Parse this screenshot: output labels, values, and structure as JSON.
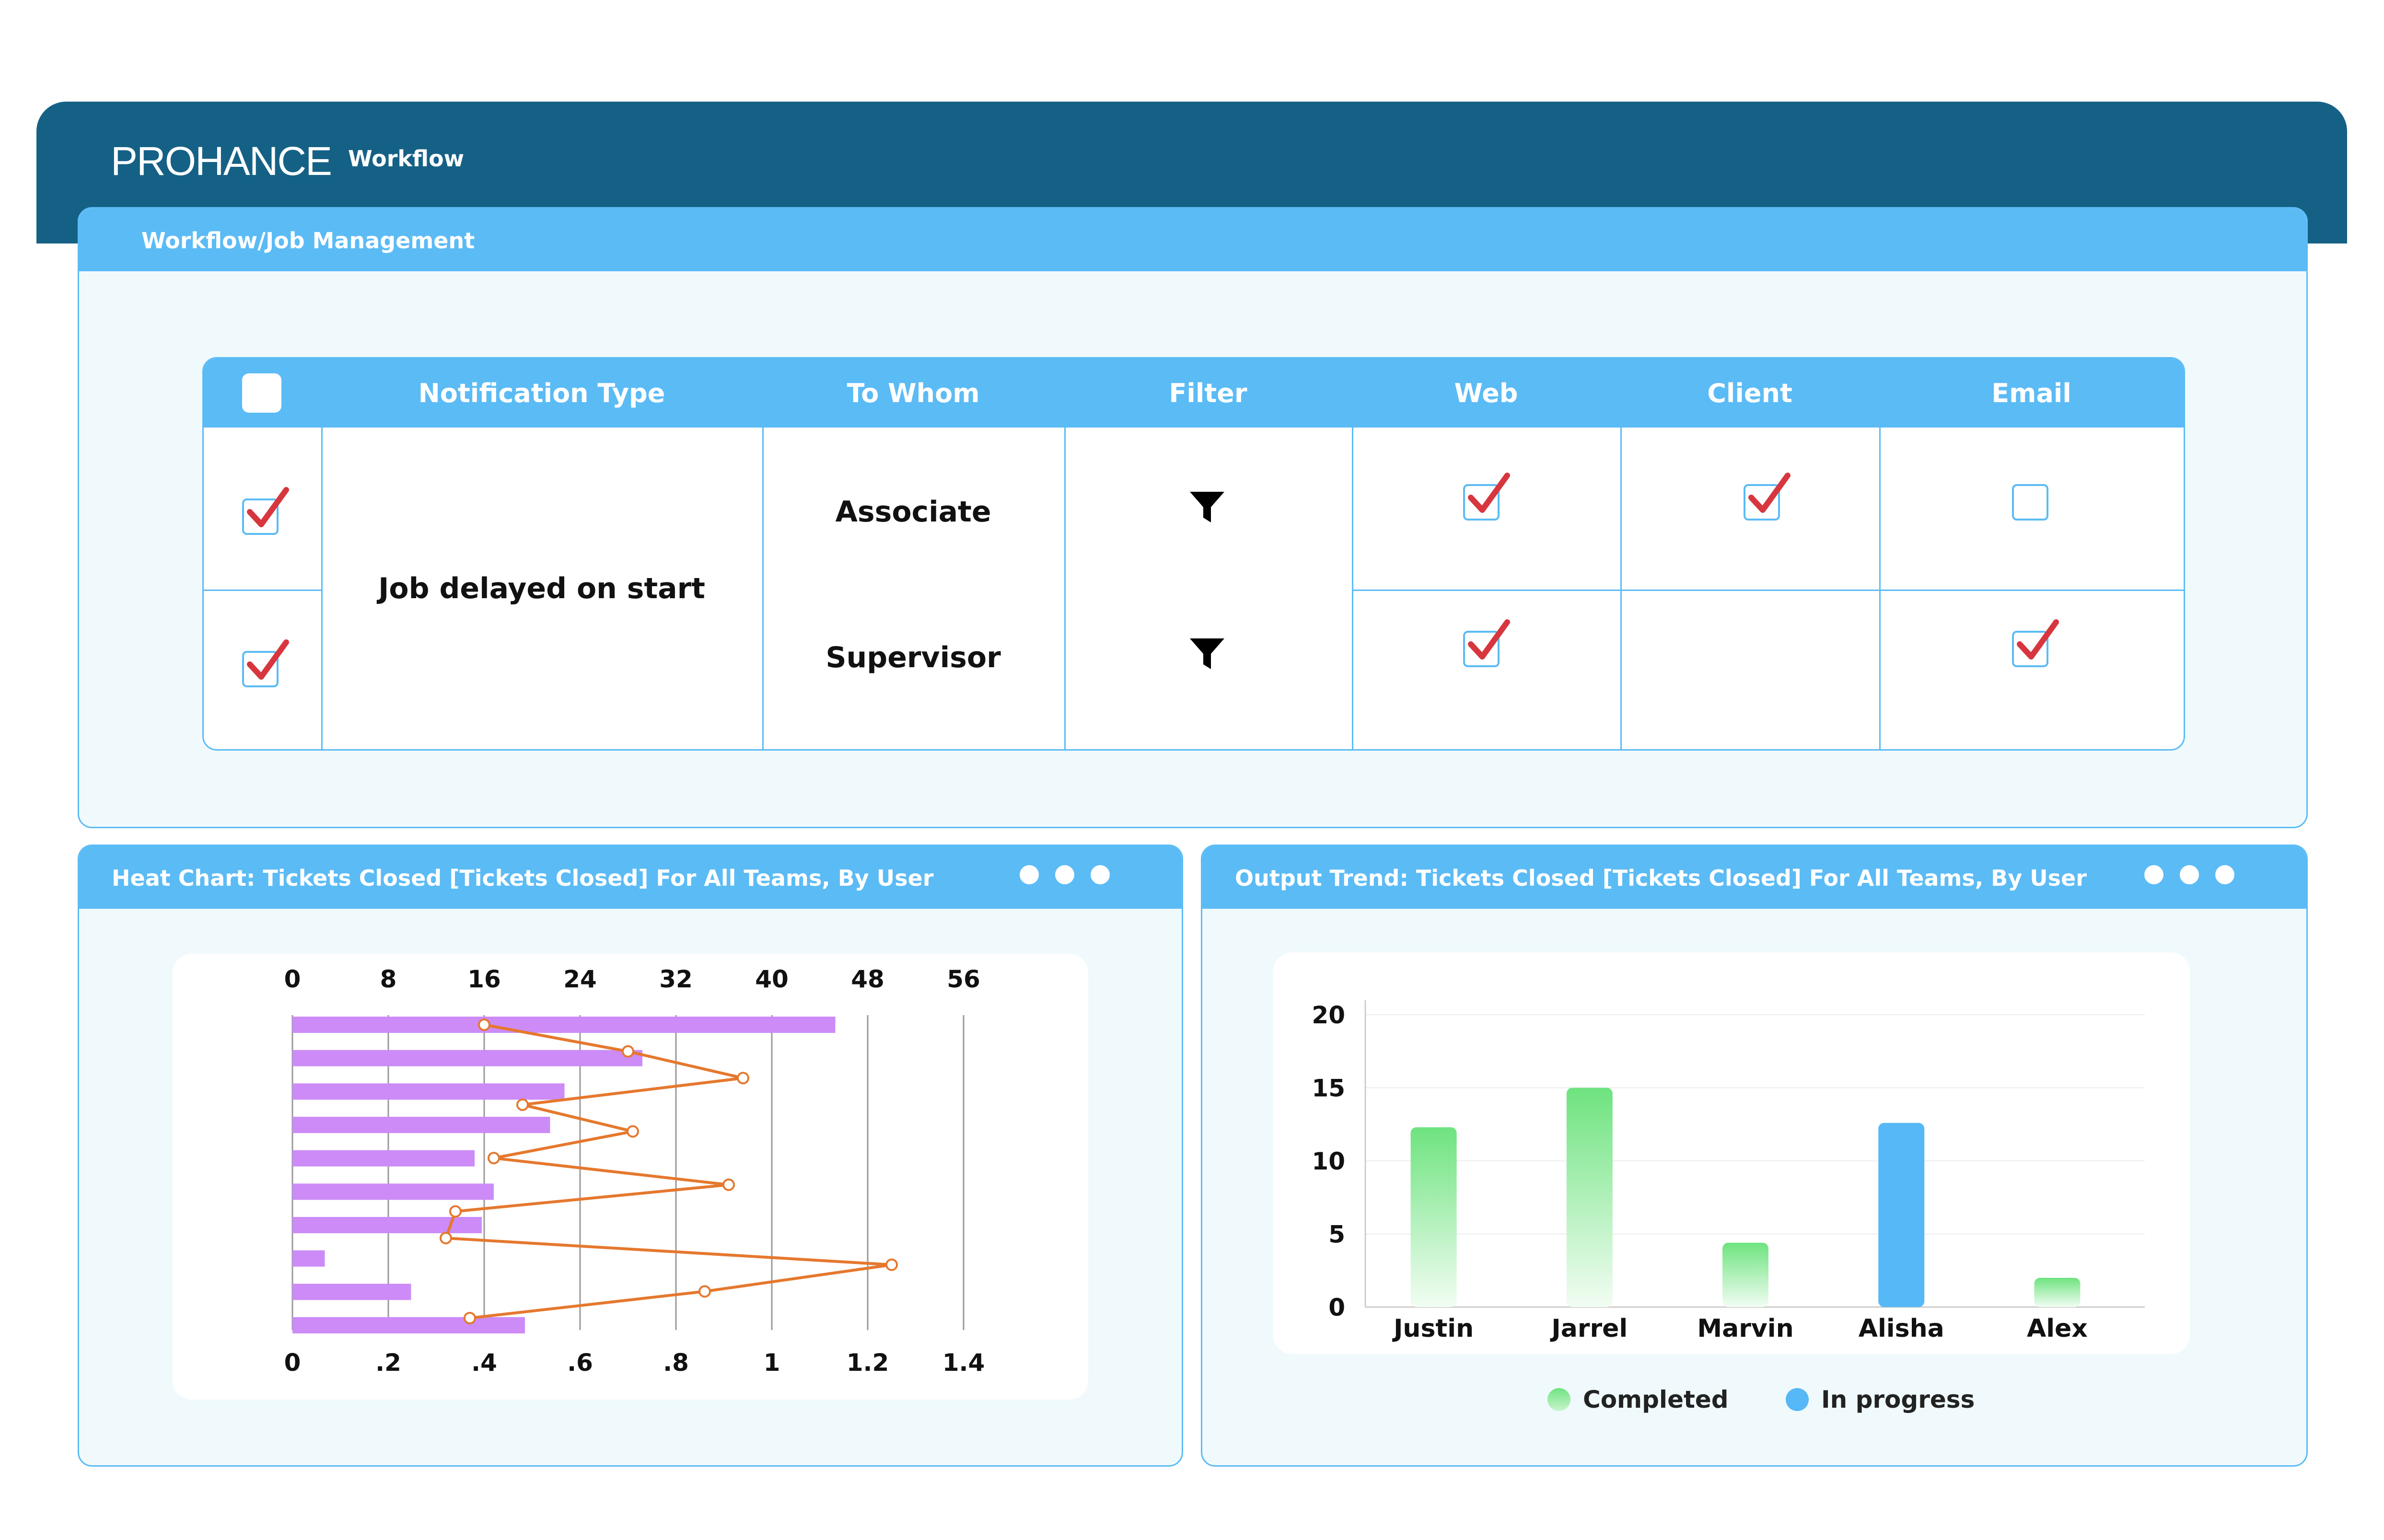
{
  "brand": {
    "logo": "PROHANCE",
    "app": "Workflow"
  },
  "panel": {
    "title": "Workflow/Job Management"
  },
  "table": {
    "headers": [
      "Notification Type",
      "To Whom",
      "Filter",
      "Web",
      "Client",
      "Email"
    ],
    "header_checkbox": false,
    "notification_type": "Job delayed on start",
    "rows": [
      {
        "selected": true,
        "to_whom": "Associate",
        "filter_icon": "funnel-icon",
        "web": true,
        "client": true,
        "email": false
      },
      {
        "selected": true,
        "to_whom": "Supervisor",
        "filter_icon": "funnel-icon",
        "web": true,
        "client": null,
        "email": true
      }
    ]
  },
  "heat_chart": {
    "title": "Heat Chart: Tickets Closed [Tickets Closed] For All Teams, By User",
    "chart_data": {
      "type": "bar",
      "orientation": "horizontal",
      "top_axis_ticks": [
        "0",
        "8",
        "16",
        "24",
        "32",
        "40",
        "48",
        "56"
      ],
      "bottom_axis_ticks": [
        "0",
        ".2",
        ".4",
        ".6",
        ".8",
        "1",
        "1.2",
        "1.4"
      ],
      "bar_values": [
        45.3,
        29.2,
        22.7,
        21.5,
        15.2,
        16.8,
        15.8,
        2.7,
        9.9,
        19.4
      ],
      "line_values": [
        0.4,
        0.7,
        0.94,
        0.48,
        0.71,
        0.42,
        0.91,
        0.34,
        0.32,
        1.25,
        0.86,
        0.37
      ],
      "xlim_top": [
        0,
        56
      ],
      "xlim_bottom": [
        0,
        1.4
      ],
      "grid": true,
      "colors": {
        "bars": "#cc8bf7",
        "line": "#e5782e",
        "marker_fill": "#ffffff"
      }
    }
  },
  "output_trend": {
    "title": "Output Trend: Tickets Closed [Tickets Closed] For All Teams, By User",
    "chart_data": {
      "type": "bar",
      "categories": [
        "Justin",
        "Jarrel",
        "Marvin",
        "Alisha",
        "Alex"
      ],
      "values": [
        12.3,
        15,
        4.4,
        12.6,
        2
      ],
      "status": [
        "Completed",
        "Completed",
        "Completed",
        "In progress",
        "Completed"
      ],
      "yticks": [
        "0",
        "5",
        "10",
        "15",
        "20"
      ],
      "ylim": [
        0,
        20
      ],
      "grid": true,
      "legend": [
        "Completed",
        "In progress"
      ],
      "legend_position": "bottom",
      "colors": {
        "Completed": "#6ee37f",
        "In progress": "#56b8f7"
      }
    }
  },
  "colors": {
    "header": "#156186",
    "accent": "#5bbbf5",
    "check": "#d7363f"
  }
}
